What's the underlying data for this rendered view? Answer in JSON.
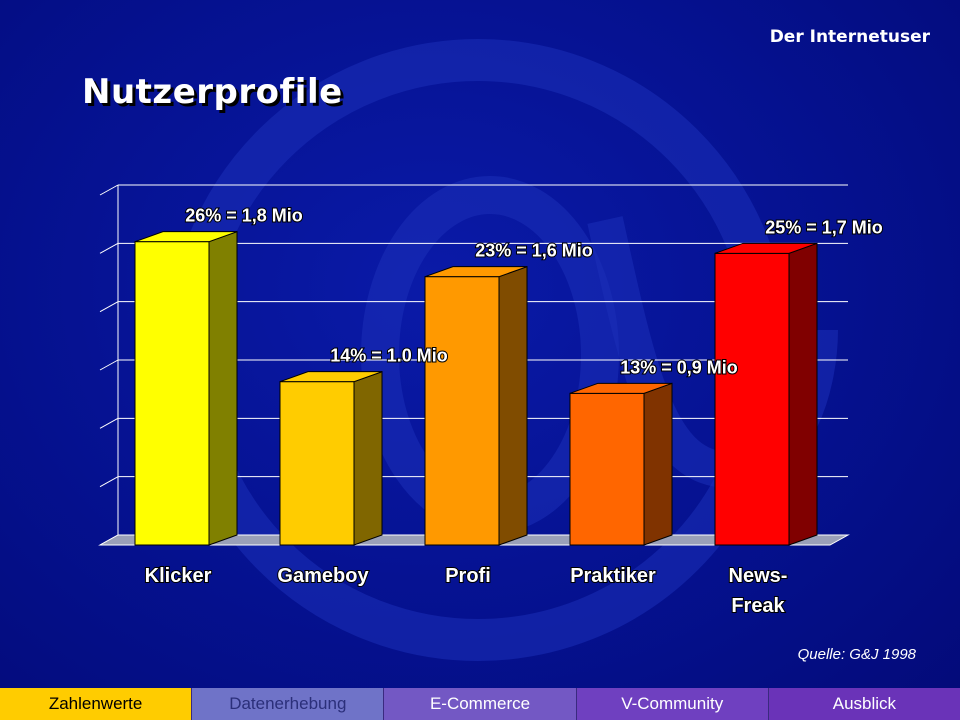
{
  "header": {
    "section": "Der Internetuser",
    "title": "Nutzerprofile"
  },
  "source": "Quelle: G&J 1998",
  "nav": {
    "tabs": [
      {
        "label": "Zahlenwerte",
        "active": true,
        "bg": "#ffcc00",
        "fg": "#000000"
      },
      {
        "label": "Datenerhebung",
        "active": false,
        "bg": "#6f73c8",
        "fg": "#2b2f7a"
      },
      {
        "label": "E-Commerce",
        "active": false,
        "bg": "#7358c4",
        "fg": "#ffffff"
      },
      {
        "label": "V-Community",
        "active": false,
        "bg": "#6f40c0",
        "fg": "#ffffff"
      },
      {
        "label": "Ausblick",
        "active": false,
        "bg": "#6a33b8",
        "fg": "#ffffff"
      }
    ]
  },
  "chart_data": {
    "type": "bar",
    "style": "3d",
    "categories": [
      "Klicker",
      "Gameboy",
      "Profi",
      "Praktiker",
      "News-\nFreak"
    ],
    "values": [
      26,
      14,
      23,
      13,
      25
    ],
    "unit": "%",
    "data_labels": [
      "26% = 1,8 Mio",
      "14% = 1.0 Mio",
      "23% = 1,6 Mio",
      "13% = 0,9 Mio",
      "25% = 1,7 Mio"
    ],
    "colors": [
      "#ffff00",
      "#ffcc00",
      "#ff9900",
      "#ff6600",
      "#ff0000"
    ],
    "side_colors": [
      "#808000",
      "#806600",
      "#804c00",
      "#803300",
      "#800000"
    ],
    "ylim": [
      0,
      30
    ],
    "grid": true,
    "legend": "none"
  }
}
